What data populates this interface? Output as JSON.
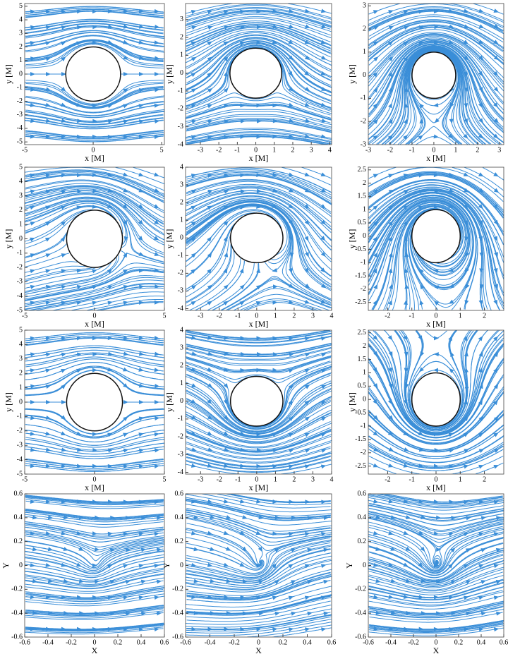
{
  "chart_data": [
    {
      "type": "streamplot",
      "xlabel": "x [M]",
      "ylabel": "y [M]",
      "xlim": [
        -5,
        5.2
      ],
      "ylim": [
        -5.2,
        5.2
      ],
      "xticks": [
        -5,
        0,
        5
      ],
      "yticks": [
        -5,
        -4,
        -3,
        -2,
        -1,
        0,
        1,
        2,
        3,
        4,
        5
      ],
      "circle_radius": 2,
      "color": "#3a8ed8"
    },
    {
      "type": "streamplot",
      "xlabel": "x [M]",
      "ylabel": "y [M]",
      "xlim": [
        -3.8,
        4.1
      ],
      "ylim": [
        -4,
        3.9
      ],
      "xticks": [
        -3,
        -2,
        -1,
        0,
        1,
        2,
        3,
        4
      ],
      "yticks": [
        -4,
        -3,
        -2,
        -1,
        0,
        1,
        2,
        3
      ],
      "circle_radius": 1.4,
      "color": "#3a8ed8"
    },
    {
      "type": "streamplot",
      "xlabel": "x [M]",
      "ylabel": "y [M]",
      "xlim": [
        -3,
        3.2
      ],
      "ylim": [
        -3,
        3.1
      ],
      "xticks": [
        -3,
        -2,
        -1,
        0,
        1,
        2,
        3
      ],
      "yticks": [
        -3,
        -2,
        -1,
        0,
        1,
        2,
        3
      ],
      "circle_radius": 1,
      "color": "#3a8ed8"
    },
    {
      "type": "streamplot",
      "xlabel": "x [M]",
      "ylabel": "y [M]",
      "xlim": [
        -5,
        5
      ],
      "ylim": [
        -5,
        5
      ],
      "xticks": [
        -5,
        0,
        5
      ],
      "yticks": [
        -5,
        -4,
        -3,
        -2,
        -1,
        0,
        1,
        2,
        3,
        4,
        5
      ],
      "circle_radius": 2,
      "color": "#3a8ed8"
    },
    {
      "type": "streamplot",
      "xlabel": "x [M]",
      "ylabel": "y [M]",
      "xlim": [
        -3.8,
        4
      ],
      "ylim": [
        -4.1,
        4
      ],
      "xticks": [
        -3,
        -2,
        -1,
        0,
        1,
        2,
        3,
        4
      ],
      "yticks": [
        -4,
        -3,
        -2,
        -1,
        0,
        1,
        2,
        3,
        4
      ],
      "circle_radius": 1.4,
      "color": "#3a8ed8"
    },
    {
      "type": "streamplot",
      "xlabel": "x [M]",
      "ylabel": "y [M]",
      "xlim": [
        -2.8,
        2.8
      ],
      "ylim": [
        -2.8,
        2.6
      ],
      "xticks": [
        -2,
        -1,
        0,
        1,
        2
      ],
      "yticks": [
        -2.5,
        -2,
        -1.5,
        -1,
        -0.5,
        0,
        0.5,
        1,
        1.5,
        2,
        2.5
      ],
      "circle_radius": 1,
      "color": "#3a8ed8"
    },
    {
      "type": "streamplot",
      "xlabel": "x [M]",
      "ylabel": "y [M]",
      "xlim": [
        -5,
        5
      ],
      "ylim": [
        -5,
        5
      ],
      "xticks": [
        -5,
        0,
        5
      ],
      "yticks": [
        -5,
        -4,
        -3,
        -2,
        -1,
        0,
        1,
        2,
        3,
        4,
        5
      ],
      "circle_radius": 2,
      "color": "#3a8ed8"
    },
    {
      "type": "streamplot",
      "xlabel": "x [M]",
      "ylabel": "y [M]",
      "xlim": [
        -3.8,
        4
      ],
      "ylim": [
        -4.1,
        4
      ],
      "xticks": [
        -3,
        -2,
        -1,
        0,
        1,
        2,
        3,
        4
      ],
      "yticks": [
        -4,
        -3,
        -2,
        -1,
        0,
        1,
        2,
        3,
        4
      ],
      "circle_radius": 1.4,
      "color": "#3a8ed8"
    },
    {
      "type": "streamplot",
      "xlabel": "x [M]",
      "ylabel": "y [M]",
      "xlim": [
        -2.8,
        2.8
      ],
      "ylim": [
        -2.8,
        2.6
      ],
      "xticks": [
        -2,
        -1,
        0,
        1,
        2
      ],
      "yticks": [
        -2.5,
        -2,
        -1.5,
        -1,
        -0.5,
        0,
        0.5,
        1,
        1.5,
        2,
        2.5
      ],
      "circle_radius": 1,
      "color": "#3a8ed8"
    },
    {
      "type": "streamplot",
      "xlabel": "X",
      "ylabel": "Y",
      "xlim": [
        -0.6,
        0.6
      ],
      "ylim": [
        -0.6,
        0.6
      ],
      "xticks": [
        -0.6,
        -0.4,
        -0.2,
        0,
        0.2,
        0.4,
        0.6
      ],
      "yticks": [
        -0.6,
        -0.4,
        -0.2,
        0,
        0.2,
        0.4,
        0.6
      ],
      "color": "#3a8ed8"
    },
    {
      "type": "streamplot",
      "xlabel": "X",
      "ylabel": "Y",
      "xlim": [
        -0.6,
        0.6
      ],
      "ylim": [
        -0.6,
        0.6
      ],
      "xticks": [
        -0.6,
        -0.4,
        -0.2,
        0,
        0.2,
        0.4,
        0.6
      ],
      "yticks": [
        -0.6,
        -0.4,
        -0.2,
        0,
        0.2,
        0.4,
        0.6
      ],
      "color": "#3a8ed8"
    },
    {
      "type": "streamplot",
      "xlabel": "X",
      "ylabel": "Y",
      "xlim": [
        -0.6,
        0.6
      ],
      "ylim": [
        -0.6,
        0.6
      ],
      "xticks": [
        -0.6,
        -0.4,
        -0.2,
        0,
        0.2,
        0.4,
        0.6
      ],
      "yticks": [
        -0.6,
        -0.4,
        -0.2,
        0,
        0.2,
        0.4,
        0.6
      ],
      "color": "#3a8ed8"
    }
  ]
}
